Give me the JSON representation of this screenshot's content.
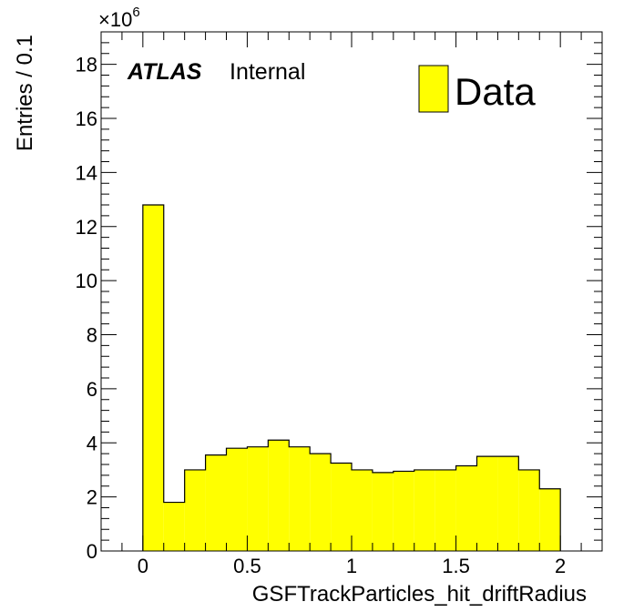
{
  "chart_data": {
    "type": "bar",
    "xlabel": "GSFTrackParticles_hit_driftRadius",
    "ylabel": "Entries / 0.1",
    "y_multiplier_label": "×10",
    "y_multiplier_exponent": "6",
    "xlim": [
      -0.2,
      2.2
    ],
    "ylim": [
      0,
      19.2
    ],
    "x_ticks": [
      0,
      0.5,
      1,
      1.5,
      2
    ],
    "x_tick_labels": [
      "0",
      "0.5",
      "1",
      "1.5",
      "2"
    ],
    "y_ticks": [
      0,
      2,
      4,
      6,
      8,
      10,
      12,
      14,
      16,
      18
    ],
    "y_tick_labels": [
      "0",
      "2",
      "4",
      "6",
      "8",
      "10",
      "12",
      "14",
      "16",
      "18"
    ],
    "bin_edges": [
      0,
      0.1,
      0.2,
      0.3,
      0.4,
      0.5,
      0.6,
      0.7,
      0.8,
      0.9,
      1.0,
      1.1,
      1.2,
      1.3,
      1.4,
      1.5,
      1.6,
      1.7,
      1.8,
      1.9,
      2.0
    ],
    "values": [
      12.8,
      1.8,
      3.0,
      3.55,
      3.8,
      3.85,
      4.1,
      3.85,
      3.6,
      3.25,
      3.0,
      2.9,
      2.95,
      3.0,
      3.0,
      3.15,
      3.5,
      3.5,
      3.0,
      2.3
    ],
    "series": [
      {
        "name": "Data",
        "color": "#ffff00"
      }
    ],
    "legend": {
      "placement": "top-right",
      "label": "Data"
    },
    "grid": false
  },
  "annotation": {
    "experiment": "ATLAS",
    "status": "Internal"
  },
  "colors": {
    "fill": "#ffff00",
    "line": "#000000",
    "background": "#ffffff"
  }
}
